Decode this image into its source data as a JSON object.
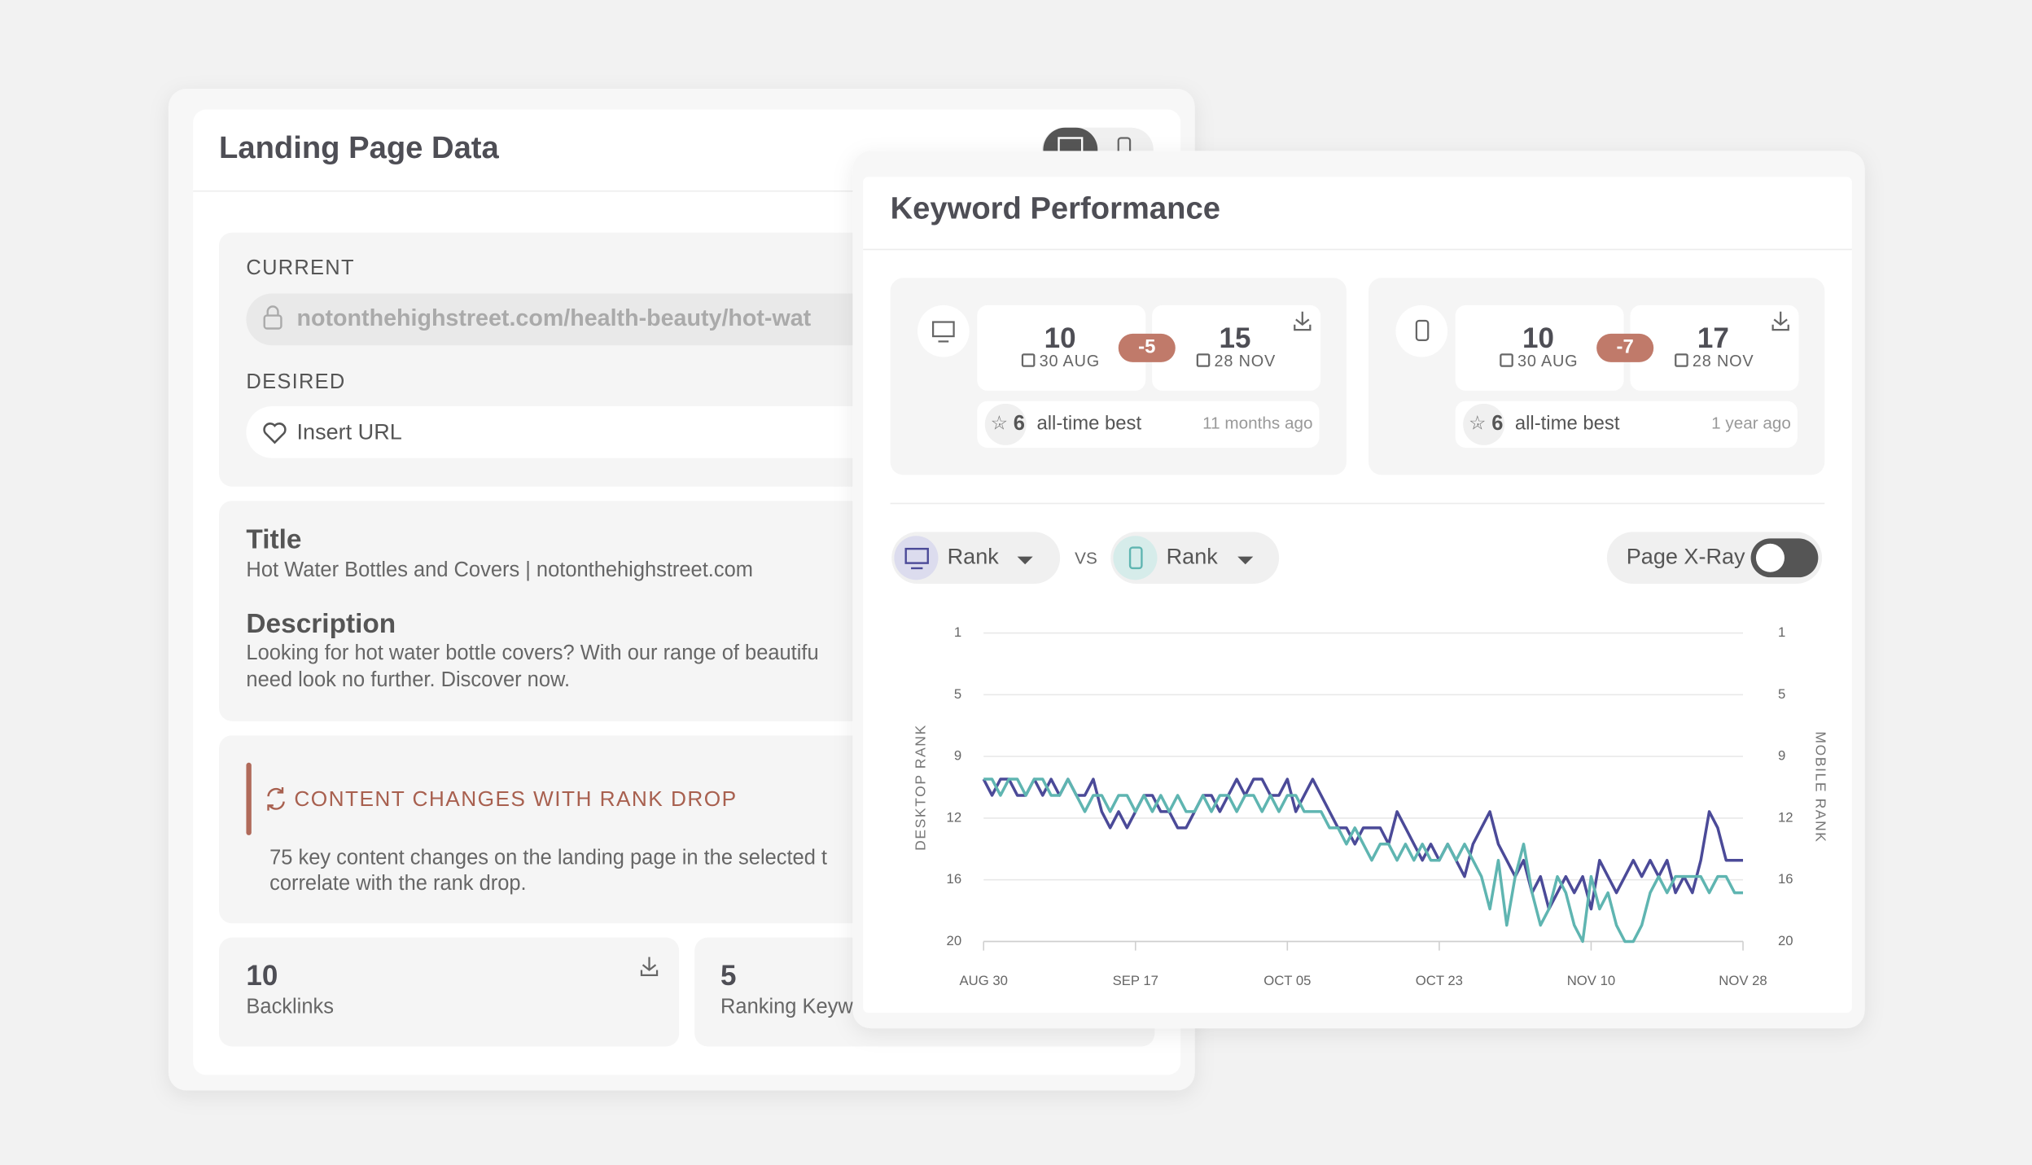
{
  "landing_page": {
    "title": "Landing Page Data",
    "current_label": "CURRENT",
    "current_url": "notonthehighstreet.com/health-beauty/hot-wat",
    "desired_label": "DESIRED",
    "desired_placeholder": "Insert URL",
    "title_label": "Title",
    "page_title": "Hot Water Bottles and Covers | notonthehighstreet.com",
    "description_label": "Description",
    "description_lines": [
      "Looking for hot water bottle covers? With our range of beautifu",
      "need look no further. Discover now."
    ],
    "alert": {
      "title": "CONTENT CHANGES WITH RANK DROP",
      "lines": [
        "75 key content changes on the landing page in the selected t",
        "correlate with the rank drop."
      ]
    },
    "stats": [
      {
        "value": 10,
        "label": "Backlinks"
      },
      {
        "value": 5,
        "label": "Ranking Keyw"
      }
    ]
  },
  "keyword_performance": {
    "title": "Keyword Performance",
    "devices": [
      {
        "start": 10,
        "start_date": "30 AUG",
        "change": -5,
        "end": 15,
        "end_date": "28 NOV",
        "best": 6,
        "best_label": "all-time best",
        "best_when": "11 months ago"
      },
      {
        "start": 10,
        "start_date": "30 AUG",
        "change": -7,
        "end": 17,
        "end_date": "28 NOV",
        "best": 6,
        "best_label": "all-time best",
        "best_when": "1 year ago"
      }
    ],
    "left_metric": "Rank",
    "vs": "VS",
    "right_metric": "Rank",
    "toggle_label": "Page X-Ray"
  },
  "chart_data": {
    "type": "line",
    "y_label": "DESKTOP RANK",
    "y2_label": "MOBILE RANK",
    "categories": [
      "AUG 30",
      null,
      null,
      null,
      null,
      null,
      null,
      null,
      null,
      null,
      null,
      null,
      null,
      null,
      null,
      null,
      null,
      null,
      "SEP 17",
      null,
      null,
      null,
      null,
      null,
      null,
      null,
      null,
      null,
      null,
      null,
      null,
      null,
      null,
      null,
      null,
      null,
      "OCT 05",
      null,
      null,
      null,
      null,
      null,
      null,
      null,
      null,
      null,
      null,
      null,
      null,
      null,
      null,
      null,
      null,
      null,
      "OCT 23",
      null,
      null,
      null,
      null,
      null,
      null,
      null,
      null,
      null,
      null,
      null,
      null,
      null,
      null,
      null,
      null,
      null,
      "NOV 10",
      null,
      null,
      null,
      null,
      null,
      null,
      null,
      null,
      null,
      null,
      null,
      null,
      null,
      null,
      null,
      null,
      null,
      "NOV 28"
    ],
    "ylim": [
      20,
      1
    ],
    "yticks": [
      1,
      {
        "value": 4.8,
        "label": "5"
      },
      {
        "value": 8.6,
        "label": "9"
      },
      {
        "value": 12.4,
        "label": "12"
      },
      {
        "value": 16.2,
        "label": "16"
      },
      20
    ],
    "y2lim": [
      20,
      1
    ],
    "y2ticks": [
      1,
      {
        "value": 4.8,
        "label": "5"
      },
      {
        "value": 8.6,
        "label": "9"
      },
      {
        "value": 12.4,
        "label": "12"
      },
      {
        "value": 16.2,
        "label": "16"
      },
      20
    ],
    "grid": true,
    "series": [
      {
        "color": "#4b4a98",
        "values": [
          10,
          11,
          10,
          10,
          11,
          11,
          10,
          11,
          10,
          11,
          10,
          11,
          11,
          10,
          12,
          13,
          12,
          13,
          12,
          11,
          11,
          12,
          12,
          13,
          13,
          12,
          11,
          11,
          12,
          11,
          10,
          11,
          10,
          10,
          11,
          11,
          10,
          12,
          11,
          10,
          11,
          12,
          13,
          13,
          14,
          13,
          13,
          13,
          14,
          12,
          13,
          14,
          15,
          14,
          15,
          14,
          15,
          16,
          14,
          13,
          12,
          14,
          15,
          16,
          15,
          17,
          16,
          18,
          17,
          16,
          17,
          16,
          18,
          15,
          16,
          17,
          16,
          15,
          16,
          15,
          16,
          15,
          17,
          16,
          17,
          15,
          12,
          13,
          15,
          15,
          15
        ]
      },
      {
        "color": "#5fb5b1",
        "axis": "y2",
        "values": [
          10,
          10,
          11,
          10,
          10,
          11,
          10,
          10,
          11,
          11,
          10,
          11,
          12,
          11,
          11,
          12,
          11,
          11,
          12,
          11,
          12,
          11,
          12,
          11,
          12,
          12,
          11,
          12,
          11,
          11,
          12,
          11,
          11,
          12,
          11,
          12,
          11,
          11,
          12,
          12,
          12,
          13,
          13,
          14,
          13,
          14,
          15,
          14,
          14,
          15,
          14,
          15,
          14,
          15,
          15,
          14,
          15,
          14,
          15,
          16,
          18,
          15,
          19,
          16,
          14,
          17,
          19,
          18,
          16,
          17,
          19,
          20,
          16,
          18,
          17,
          19,
          20,
          20,
          19,
          17,
          16,
          17,
          16,
          16,
          16,
          16,
          17,
          16,
          16,
          17,
          17
        ]
      }
    ]
  }
}
